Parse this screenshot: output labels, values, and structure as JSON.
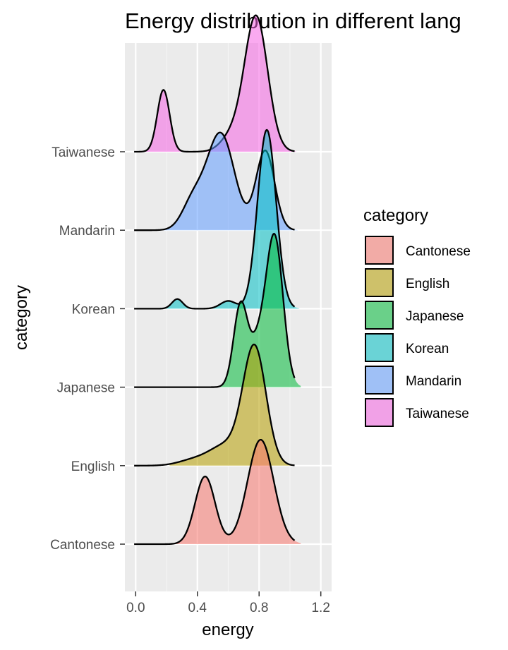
{
  "chart_data": {
    "type": "ridgeline",
    "title": "Energy distribution in different lang",
    "xlabel": "energy",
    "ylabel": "category",
    "xlim": [
      -0.07,
      1.27
    ],
    "x_ticks": [
      "0.0",
      "0.4",
      "0.8",
      "1.2"
    ],
    "x_tick_values": [
      0.0,
      0.4,
      0.8,
      1.2
    ],
    "grid": true,
    "legend": {
      "title": "category",
      "placement": "right",
      "entries": [
        "Cantonese",
        "English",
        "Japanese",
        "Korean",
        "Mandarin",
        "Taiwanese"
      ]
    },
    "categories": [
      "Cantonese",
      "English",
      "Japanese",
      "Korean",
      "Mandarin",
      "Taiwanese"
    ],
    "series": [
      {
        "name": "Cantonese",
        "color": "#F8766D",
        "x_range": [
          0.19,
          1.07
        ],
        "peaks": [
          {
            "mu": 0.45,
            "sigma": 0.065,
            "height": 0.7
          },
          {
            "mu": 0.81,
            "sigma": 0.085,
            "height": 1.08
          }
        ]
      },
      {
        "name": "English",
        "color": "#B79F00",
        "x_range": [
          0.22,
          1.02
        ],
        "peaks": [
          {
            "mu": 0.77,
            "sigma": 0.075,
            "height": 1.22
          },
          {
            "mu": 0.58,
            "sigma": 0.1,
            "height": 0.2
          },
          {
            "mu": 0.38,
            "sigma": 0.1,
            "height": 0.06
          }
        ]
      },
      {
        "name": "Japanese",
        "color": "#00BA38",
        "x_range": [
          0.44,
          1.07
        ],
        "peaks": [
          {
            "mu": 0.9,
            "sigma": 0.055,
            "height": 1.55
          },
          {
            "mu": 0.68,
            "sigma": 0.045,
            "height": 0.85
          },
          {
            "mu": 0.79,
            "sigma": 0.05,
            "height": 0.4
          }
        ]
      },
      {
        "name": "Korean",
        "color": "#00BFC4",
        "x_range": [
          0.1,
          1.06
        ],
        "peaks": [
          {
            "mu": 0.85,
            "sigma": 0.06,
            "height": 1.85
          },
          {
            "mu": 0.27,
            "sigma": 0.035,
            "height": 0.1
          },
          {
            "mu": 0.6,
            "sigma": 0.05,
            "height": 0.08
          }
        ]
      },
      {
        "name": "Mandarin",
        "color": "#619CFF",
        "x_range": [
          0.1,
          1.05
        ],
        "peaks": [
          {
            "mu": 0.55,
            "sigma": 0.09,
            "height": 1.0
          },
          {
            "mu": 0.84,
            "sigma": 0.06,
            "height": 0.82
          },
          {
            "mu": 0.37,
            "sigma": 0.07,
            "height": 0.28
          }
        ]
      },
      {
        "name": "Taiwanese",
        "color": "#F564E3",
        "x_range": [
          0.05,
          1.04
        ],
        "peaks": [
          {
            "mu": 0.18,
            "sigma": 0.04,
            "height": 0.64
          },
          {
            "mu": 0.78,
            "sigma": 0.075,
            "height": 1.4
          },
          {
            "mu": 0.62,
            "sigma": 0.07,
            "height": 0.15
          }
        ]
      }
    ]
  }
}
